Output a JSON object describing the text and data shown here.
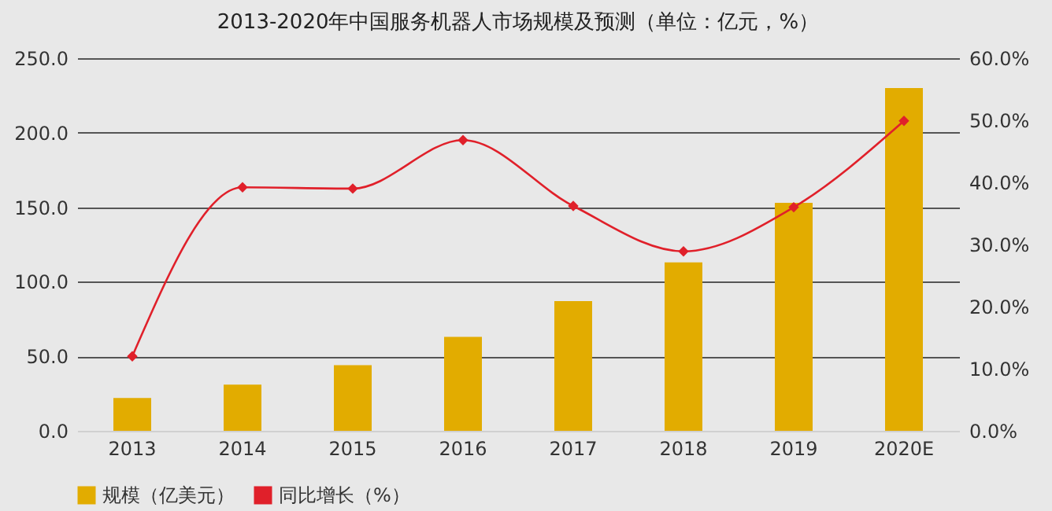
{
  "chart_data": {
    "type": "bar",
    "title": "2013-2020年中国服务机器人市场规模及预测（单位：亿元，%）",
    "categories": [
      "2013",
      "2014",
      "2015",
      "2016",
      "2017",
      "2018",
      "2019",
      "2020E"
    ],
    "series": [
      {
        "name": "规模（亿美元）",
        "color": "#e2ac00",
        "values": [
          22,
          31,
          44,
          63,
          87,
          113,
          153,
          230
        ]
      },
      {
        "name": "同比增长（%）",
        "type": "line",
        "axis": "y2",
        "color": "#e0202a",
        "values": [
          12,
          39.2,
          39,
          46.8,
          36.2,
          28.9,
          36,
          49.9
        ]
      }
    ],
    "ylim": [
      0,
      250
    ],
    "yticks": [
      {
        "value": 0,
        "label": "0.0"
      },
      {
        "value": 50,
        "label": "50.0"
      },
      {
        "value": 100,
        "label": "100.0"
      },
      {
        "value": 150,
        "label": "150.0"
      },
      {
        "value": 200,
        "label": "200.0"
      },
      {
        "value": 250,
        "label": "250.0"
      }
    ],
    "y2lim": [
      0,
      60
    ],
    "y2ticks": [
      {
        "value": 0,
        "label": "0.0%"
      },
      {
        "value": 10,
        "label": "10.0%"
      },
      {
        "value": 20,
        "label": "20.0%"
      },
      {
        "value": 30,
        "label": "30.0%"
      },
      {
        "value": 40,
        "label": "40.0%"
      },
      {
        "value": 50,
        "label": "50.0%"
      },
      {
        "value": 60,
        "label": "60.0%"
      }
    ],
    "grid": "y",
    "legend": "bottom",
    "marker": "diamond",
    "line_style": "solid"
  }
}
